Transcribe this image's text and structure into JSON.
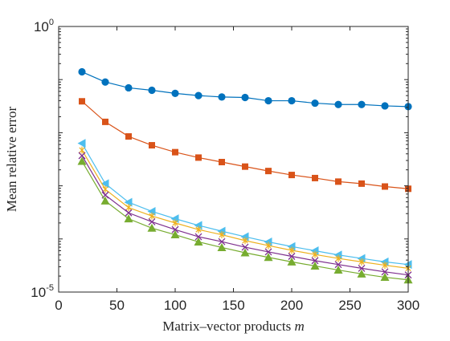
{
  "chart_data": {
    "type": "line",
    "title": "",
    "xlabel": "Matrix–vector products ",
    "xlabel_var": "m",
    "ylabel": "Mean relative error",
    "x_ticks": [
      0,
      50,
      100,
      150,
      200,
      250,
      300
    ],
    "y_ticks": [
      {
        "value": 1,
        "base": "10",
        "exp": "0"
      },
      {
        "value": 1e-05,
        "base": "10",
        "exp": "-5"
      }
    ],
    "xlim": [
      0,
      300
    ],
    "ylim": [
      1e-05,
      1
    ],
    "yscale": "log",
    "grid": false,
    "legend": "none",
    "x": [
      20,
      40,
      60,
      80,
      100,
      120,
      140,
      160,
      180,
      200,
      220,
      240,
      260,
      280,
      300
    ],
    "series": [
      {
        "color": "#0072BD",
        "marker": "circle",
        "values": [
          0.14,
          0.09,
          0.07,
          0.063,
          0.055,
          0.05,
          0.047,
          0.046,
          0.04,
          0.04,
          0.036,
          0.034,
          0.034,
          0.032,
          0.031
        ]
      },
      {
        "color": "#D95319",
        "marker": "square",
        "values": [
          0.039,
          0.016,
          0.0085,
          0.0058,
          0.0043,
          0.0034,
          0.0028,
          0.0023,
          0.0019,
          0.0016,
          0.0014,
          0.0012,
          0.0011,
          0.00097,
          0.00088
        ]
      },
      {
        "color": "#4DBEEE",
        "marker": "triangle-left",
        "values": [
          0.0063,
          0.0011,
          0.00049,
          0.00033,
          0.00024,
          0.00018,
          0.00014,
          0.00011,
          8.8e-05,
          7.2e-05,
          6e-05,
          5e-05,
          4.3e-05,
          3.7e-05,
          3.3e-05
        ]
      },
      {
        "color": "#EDB120",
        "marker": "asterisk",
        "values": [
          0.0047,
          0.00086,
          0.00039,
          0.00027,
          0.0002,
          0.00015,
          0.00012,
          9.3e-05,
          7.5e-05,
          6.1e-05,
          5.1e-05,
          4.3e-05,
          3.7e-05,
          3.2e-05,
          2.8e-05
        ]
      },
      {
        "color": "#7E2F8E",
        "marker": "x",
        "values": [
          0.0037,
          0.00067,
          0.00031,
          0.00021,
          0.00015,
          0.00011,
          8.9e-05,
          7e-05,
          5.7e-05,
          4.7e-05,
          3.9e-05,
          3.3e-05,
          2.8e-05,
          2.4e-05,
          2.1e-05
        ]
      },
      {
        "color": "#77AC30",
        "marker": "triangle-up",
        "values": [
          0.0029,
          0.00052,
          0.00024,
          0.00016,
          0.00012,
          8.8e-05,
          6.9e-05,
          5.5e-05,
          4.5e-05,
          3.7e-05,
          3.1e-05,
          2.6e-05,
          2.2e-05,
          1.9e-05,
          1.7e-05
        ]
      }
    ]
  }
}
